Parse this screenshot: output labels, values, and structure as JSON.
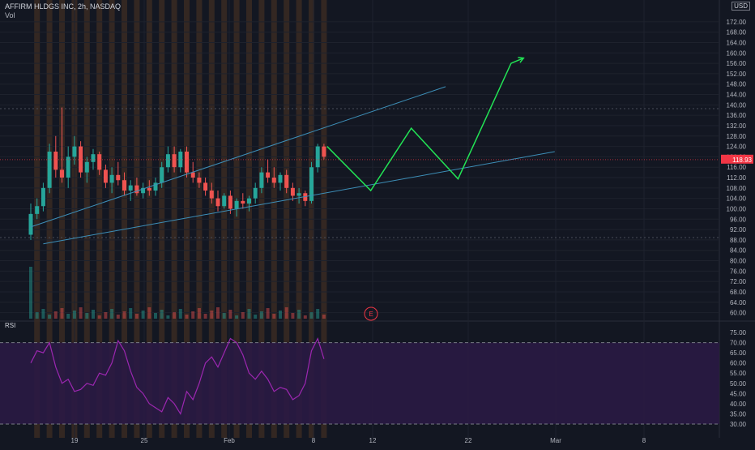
{
  "header": {
    "symbol_line": "AFFIRM HLDGS INC, 2h, NASDAQ",
    "vol_label": "Vol"
  },
  "currency": "USD",
  "earnings_marker": "E",
  "rsi_label": "RSI",
  "colors": {
    "background": "#131722",
    "up": "#26a69a",
    "down": "#ef5350",
    "session_band": "#3a2a22",
    "trend_line": "#3d8fb8",
    "projection": "#22e355",
    "rsi_line": "#9c27b0",
    "rsi_fill": "#2a1a44",
    "grid": "#1e222d",
    "current_price": "#f23645"
  },
  "chart_data": {
    "type": "candlestick",
    "price_axis": {
      "ylim": [
        58,
        176
      ],
      "ticks": [
        "172.00",
        "168.00",
        "164.00",
        "160.00",
        "156.00",
        "152.00",
        "148.00",
        "144.00",
        "140.00",
        "136.00",
        "132.00",
        "128.00",
        "124.00",
        "120.00",
        "116.00",
        "112.00",
        "108.00",
        "104.00",
        "100.00",
        "96.00",
        "92.00",
        "88.00",
        "84.00",
        "80.00",
        "76.00",
        "72.00",
        "68.00",
        "64.00",
        "60.00"
      ],
      "current_price": "118.93"
    },
    "rsi_axis": {
      "ylim": [
        28,
        77
      ],
      "ticks": [
        "75.00",
        "70.00",
        "65.00",
        "60.00",
        "55.00",
        "50.00",
        "45.00",
        "40.00",
        "35.00",
        "30.00"
      ],
      "bands": [
        70,
        30
      ]
    },
    "time_axis": [
      "19",
      "25",
      "Feb",
      "8",
      "12",
      "22",
      "Mar",
      "8"
    ],
    "candles": [
      {
        "o": 90,
        "h": 102,
        "l": 88,
        "c": 98
      },
      {
        "o": 98,
        "h": 104,
        "l": 96,
        "c": 101
      },
      {
        "o": 101,
        "h": 110,
        "l": 99,
        "c": 108
      },
      {
        "o": 108,
        "h": 125,
        "l": 106,
        "c": 122
      },
      {
        "o": 122,
        "h": 128,
        "l": 112,
        "c": 115
      },
      {
        "o": 115,
        "h": 139,
        "l": 110,
        "c": 112
      },
      {
        "o": 112,
        "h": 124,
        "l": 108,
        "c": 120
      },
      {
        "o": 120,
        "h": 128,
        "l": 117,
        "c": 124
      },
      {
        "o": 124,
        "h": 126,
        "l": 112,
        "c": 114
      },
      {
        "o": 114,
        "h": 120,
        "l": 110,
        "c": 118
      },
      {
        "o": 118,
        "h": 123,
        "l": 115,
        "c": 121
      },
      {
        "o": 121,
        "h": 122,
        "l": 113,
        "c": 115
      },
      {
        "o": 115,
        "h": 117,
        "l": 108,
        "c": 110
      },
      {
        "o": 110,
        "h": 116,
        "l": 106,
        "c": 113
      },
      {
        "o": 113,
        "h": 118,
        "l": 109,
        "c": 111
      },
      {
        "o": 111,
        "h": 114,
        "l": 105,
        "c": 107
      },
      {
        "o": 107,
        "h": 111,
        "l": 103,
        "c": 109
      },
      {
        "o": 109,
        "h": 112,
        "l": 105,
        "c": 106
      },
      {
        "o": 106,
        "h": 110,
        "l": 104,
        "c": 108
      },
      {
        "o": 108,
        "h": 111,
        "l": 105,
        "c": 107
      },
      {
        "o": 107,
        "h": 112,
        "l": 105,
        "c": 110
      },
      {
        "o": 110,
        "h": 118,
        "l": 108,
        "c": 116
      },
      {
        "o": 116,
        "h": 124,
        "l": 114,
        "c": 121
      },
      {
        "o": 121,
        "h": 124,
        "l": 114,
        "c": 116
      },
      {
        "o": 116,
        "h": 123,
        "l": 114,
        "c": 122
      },
      {
        "o": 122,
        "h": 124,
        "l": 112,
        "c": 114
      },
      {
        "o": 114,
        "h": 118,
        "l": 110,
        "c": 112
      },
      {
        "o": 112,
        "h": 114,
        "l": 108,
        "c": 110
      },
      {
        "o": 110,
        "h": 112,
        "l": 105,
        "c": 107
      },
      {
        "o": 107,
        "h": 110,
        "l": 102,
        "c": 104
      },
      {
        "o": 104,
        "h": 107,
        "l": 99,
        "c": 101
      },
      {
        "o": 101,
        "h": 106,
        "l": 100,
        "c": 105
      },
      {
        "o": 105,
        "h": 107,
        "l": 98,
        "c": 100
      },
      {
        "o": 100,
        "h": 104,
        "l": 97,
        "c": 103
      },
      {
        "o": 103,
        "h": 106,
        "l": 100,
        "c": 102
      },
      {
        "o": 102,
        "h": 105,
        "l": 99,
        "c": 104
      },
      {
        "o": 104,
        "h": 110,
        "l": 102,
        "c": 108
      },
      {
        "o": 108,
        "h": 116,
        "l": 106,
        "c": 114
      },
      {
        "o": 114,
        "h": 119,
        "l": 110,
        "c": 112
      },
      {
        "o": 112,
        "h": 116,
        "l": 108,
        "c": 110
      },
      {
        "o": 110,
        "h": 114,
        "l": 107,
        "c": 113
      },
      {
        "o": 113,
        "h": 115,
        "l": 106,
        "c": 108
      },
      {
        "o": 108,
        "h": 110,
        "l": 103,
        "c": 105
      },
      {
        "o": 105,
        "h": 108,
        "l": 102,
        "c": 106
      },
      {
        "o": 106,
        "h": 107,
        "l": 101,
        "c": 103
      },
      {
        "o": 103,
        "h": 118,
        "l": 102,
        "c": 116
      },
      {
        "o": 116,
        "h": 125,
        "l": 114,
        "c": 124
      },
      {
        "o": 124,
        "h": 125,
        "l": 119,
        "c": 120
      }
    ],
    "trend_lines": [
      {
        "x1": 0,
        "y1": 93,
        "x2": 66.5,
        "y2": 147
      },
      {
        "x1": 2,
        "y1": 86.5,
        "x2": 84,
        "y2": 122
      }
    ],
    "projection": [
      {
        "x": 47.5,
        "y": 124
      },
      {
        "x": 54.5,
        "y": 107
      },
      {
        "x": 61,
        "y": 131
      },
      {
        "x": 68.5,
        "y": 111.5
      },
      {
        "x": 77,
        "y": 156
      },
      {
        "x": 79,
        "y": 158
      }
    ],
    "rsi_values": [
      60,
      66,
      65,
      70,
      58,
      50,
      52,
      46,
      47,
      50,
      49,
      55,
      54,
      60,
      71,
      66,
      56,
      48,
      45,
      40,
      38,
      36,
      43,
      40,
      35,
      46,
      42,
      50,
      60,
      63,
      58,
      65,
      72,
      70,
      64,
      55,
      52,
      56,
      52,
      46,
      48,
      47,
      42,
      44,
      50,
      66,
      72,
      62
    ]
  }
}
